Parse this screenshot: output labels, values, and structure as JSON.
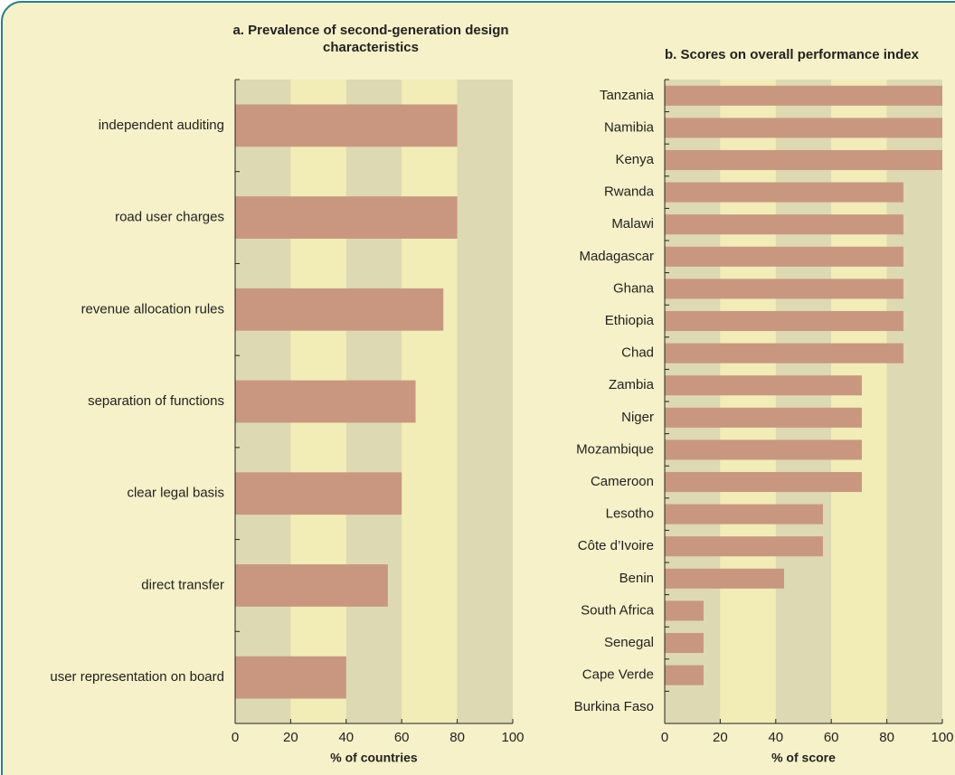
{
  "chart_data": [
    {
      "type": "bar",
      "orientation": "horizontal",
      "title": "a. Prevalence of second-generation design characteristics",
      "categories": [
        "independent auditing",
        "road user charges",
        "revenue allocation rules",
        "separation of functions",
        "clear legal basis",
        "direct transfer",
        "user representation on board"
      ],
      "values": [
        80,
        80,
        75,
        65,
        60,
        55,
        40
      ],
      "color": "#c9977f",
      "xlim": [
        0,
        100
      ],
      "xticks": [
        0,
        20,
        40,
        60,
        80,
        100
      ],
      "xlabel": "% of countries"
    },
    {
      "type": "bar",
      "orientation": "horizontal",
      "title": "b. Scores on overall performance index",
      "categories": [
        "Tanzania",
        "Namibia",
        "Kenya",
        "Rwanda",
        "Malawi",
        "Madagascar",
        "Ghana",
        "Ethiopia",
        "Chad",
        "Zambia",
        "Niger",
        "Mozambique",
        "Cameroon",
        "Lesotho",
        "Côte d’Ivoire",
        "Benin",
        "South Africa",
        "Senegal",
        "Cape Verde",
        "Burkina Faso"
      ],
      "values": [
        100,
        100,
        100,
        86,
        86,
        86,
        86,
        86,
        86,
        71,
        71,
        71,
        71,
        57,
        57,
        43,
        14,
        14,
        14,
        0
      ],
      "color": "#c9977f",
      "xlim": [
        0,
        100
      ],
      "xticks": [
        0,
        20,
        40,
        60,
        80,
        100
      ],
      "xlabel": "% of score"
    }
  ]
}
